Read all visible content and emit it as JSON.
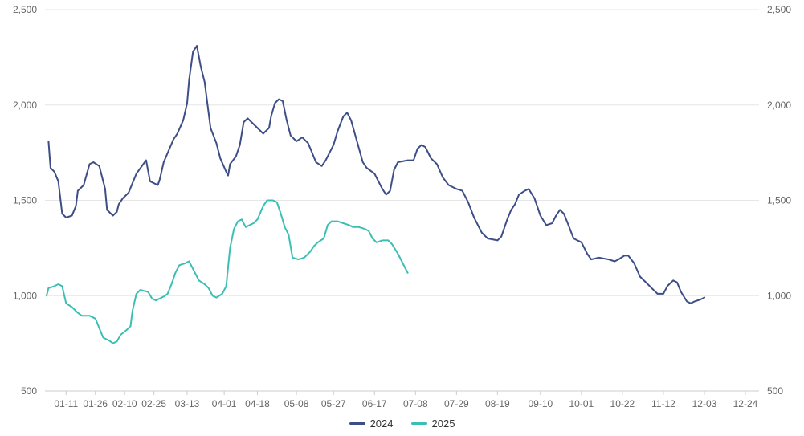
{
  "chart_data": {
    "type": "line",
    "title": "",
    "xlabel": "",
    "ylabel": "",
    "ylim": [
      500,
      2500
    ],
    "y_ticks": [
      "2,500",
      "2,000",
      "1,500",
      "1,000",
      "500"
    ],
    "grid": true,
    "legend_position": "bottom",
    "x_ticks": [
      "01-11",
      "01-26",
      "02-10",
      "02-25",
      "03-13",
      "04-01",
      "04-18",
      "05-08",
      "05-27",
      "06-17",
      "07-08",
      "07-29",
      "08-19",
      "09-10",
      "10-01",
      "10-22",
      "11-12",
      "12-03",
      "12-24"
    ],
    "series": [
      {
        "name": "2024",
        "color": "#3d4e87",
        "points": [
          [
            "01-02",
            1810
          ],
          [
            "01-03",
            1670
          ],
          [
            "01-05",
            1650
          ],
          [
            "01-07",
            1600
          ],
          [
            "01-09",
            1430
          ],
          [
            "01-11",
            1410
          ],
          [
            "01-14",
            1420
          ],
          [
            "01-16",
            1470
          ],
          [
            "01-17",
            1550
          ],
          [
            "01-20",
            1580
          ],
          [
            "01-23",
            1690
          ],
          [
            "01-25",
            1700
          ],
          [
            "01-28",
            1680
          ],
          [
            "01-31",
            1560
          ],
          [
            "02-01",
            1450
          ],
          [
            "02-04",
            1420
          ],
          [
            "02-06",
            1440
          ],
          [
            "02-07",
            1480
          ],
          [
            "02-09",
            1510
          ],
          [
            "02-12",
            1540
          ],
          [
            "02-16",
            1640
          ],
          [
            "02-21",
            1710
          ],
          [
            "02-23",
            1600
          ],
          [
            "02-27",
            1580
          ],
          [
            "02-28",
            1610
          ],
          [
            "03-01",
            1700
          ],
          [
            "03-06",
            1820
          ],
          [
            "03-08",
            1850
          ],
          [
            "03-11",
            1920
          ],
          [
            "03-13",
            2010
          ],
          [
            "03-14",
            2130
          ],
          [
            "03-16",
            2280
          ],
          [
            "03-18",
            2310
          ],
          [
            "03-20",
            2200
          ],
          [
            "03-22",
            2120
          ],
          [
            "03-25",
            1880
          ],
          [
            "03-28",
            1800
          ],
          [
            "03-30",
            1720
          ],
          [
            "04-02",
            1650
          ],
          [
            "04-03",
            1630
          ],
          [
            "04-04",
            1690
          ],
          [
            "04-07",
            1730
          ],
          [
            "04-09",
            1790
          ],
          [
            "04-11",
            1910
          ],
          [
            "04-13",
            1930
          ],
          [
            "04-17",
            1890
          ],
          [
            "04-21",
            1850
          ],
          [
            "04-24",
            1880
          ],
          [
            "04-25",
            1940
          ],
          [
            "04-27",
            2010
          ],
          [
            "04-29",
            2030
          ],
          [
            "05-01",
            2020
          ],
          [
            "05-03",
            1920
          ],
          [
            "05-05",
            1840
          ],
          [
            "05-08",
            1810
          ],
          [
            "05-11",
            1830
          ],
          [
            "05-14",
            1800
          ],
          [
            "05-18",
            1700
          ],
          [
            "05-21",
            1680
          ],
          [
            "05-23",
            1710
          ],
          [
            "05-27",
            1790
          ],
          [
            "05-29",
            1860
          ],
          [
            "06-01",
            1940
          ],
          [
            "06-03",
            1960
          ],
          [
            "06-05",
            1920
          ],
          [
            "06-08",
            1810
          ],
          [
            "06-11",
            1700
          ],
          [
            "06-13",
            1670
          ],
          [
            "06-17",
            1640
          ],
          [
            "06-21",
            1560
          ],
          [
            "06-23",
            1530
          ],
          [
            "06-25",
            1550
          ],
          [
            "06-27",
            1660
          ],
          [
            "06-29",
            1700
          ],
          [
            "07-04",
            1710
          ],
          [
            "07-07",
            1710
          ],
          [
            "07-09",
            1770
          ],
          [
            "07-11",
            1790
          ],
          [
            "07-13",
            1780
          ],
          [
            "07-16",
            1720
          ],
          [
            "07-19",
            1690
          ],
          [
            "07-22",
            1620
          ],
          [
            "07-25",
            1580
          ],
          [
            "07-29",
            1560
          ],
          [
            "08-01",
            1550
          ],
          [
            "08-04",
            1490
          ],
          [
            "08-07",
            1410
          ],
          [
            "08-11",
            1330
          ],
          [
            "08-14",
            1300
          ],
          [
            "08-19",
            1290
          ],
          [
            "08-21",
            1310
          ],
          [
            "08-24",
            1400
          ],
          [
            "08-26",
            1450
          ],
          [
            "08-28",
            1480
          ],
          [
            "08-30",
            1530
          ],
          [
            "09-02",
            1550
          ],
          [
            "09-04",
            1560
          ],
          [
            "09-07",
            1510
          ],
          [
            "09-10",
            1420
          ],
          [
            "09-13",
            1370
          ],
          [
            "09-16",
            1380
          ],
          [
            "09-18",
            1420
          ],
          [
            "09-20",
            1450
          ],
          [
            "09-22",
            1430
          ],
          [
            "09-24",
            1380
          ],
          [
            "09-27",
            1300
          ],
          [
            "10-01",
            1280
          ],
          [
            "10-04",
            1220
          ],
          [
            "10-06",
            1190
          ],
          [
            "10-10",
            1200
          ],
          [
            "10-15",
            1190
          ],
          [
            "10-18",
            1180
          ],
          [
            "10-20",
            1190
          ],
          [
            "10-23",
            1210
          ],
          [
            "10-25",
            1210
          ],
          [
            "10-28",
            1170
          ],
          [
            "10-31",
            1100
          ],
          [
            "11-03",
            1070
          ],
          [
            "11-06",
            1040
          ],
          [
            "11-09",
            1010
          ],
          [
            "11-12",
            1010
          ],
          [
            "11-14",
            1050
          ],
          [
            "11-17",
            1080
          ],
          [
            "11-19",
            1070
          ],
          [
            "11-21",
            1020
          ],
          [
            "11-24",
            970
          ],
          [
            "11-26",
            960
          ],
          [
            "11-28",
            970
          ],
          [
            "12-01",
            980
          ],
          [
            "12-03",
            990
          ]
        ]
      },
      {
        "name": "2025",
        "color": "#3bbfb4",
        "points": [
          [
            "01-01",
            1000
          ],
          [
            "01-02",
            1040
          ],
          [
            "01-05",
            1050
          ],
          [
            "01-07",
            1060
          ],
          [
            "01-09",
            1050
          ],
          [
            "01-11",
            960
          ],
          [
            "01-14",
            940
          ],
          [
            "01-17",
            910
          ],
          [
            "01-19",
            895
          ],
          [
            "01-23",
            895
          ],
          [
            "01-26",
            880
          ],
          [
            "01-28",
            830
          ],
          [
            "01-30",
            780
          ],
          [
            "02-02",
            765
          ],
          [
            "02-04",
            750
          ],
          [
            "02-06",
            760
          ],
          [
            "02-08",
            795
          ],
          [
            "02-11",
            820
          ],
          [
            "02-13",
            840
          ],
          [
            "02-14",
            920
          ],
          [
            "02-16",
            1010
          ],
          [
            "02-18",
            1030
          ],
          [
            "02-22",
            1020
          ],
          [
            "02-24",
            985
          ],
          [
            "02-26",
            975
          ],
          [
            "03-01",
            995
          ],
          [
            "03-03",
            1010
          ],
          [
            "03-05",
            1060
          ],
          [
            "03-07",
            1120
          ],
          [
            "03-09",
            1160
          ],
          [
            "03-12",
            1170
          ],
          [
            "03-14",
            1180
          ],
          [
            "03-16",
            1140
          ],
          [
            "03-19",
            1080
          ],
          [
            "03-22",
            1060
          ],
          [
            "03-24",
            1040
          ],
          [
            "03-26",
            1000
          ],
          [
            "03-28",
            990
          ],
          [
            "03-31",
            1010
          ],
          [
            "04-02",
            1050
          ],
          [
            "04-04",
            1250
          ],
          [
            "04-06",
            1350
          ],
          [
            "04-08",
            1390
          ],
          [
            "04-10",
            1400
          ],
          [
            "04-12",
            1360
          ],
          [
            "04-14",
            1370
          ],
          [
            "04-16",
            1380
          ],
          [
            "04-18",
            1400
          ],
          [
            "04-21",
            1470
          ],
          [
            "04-23",
            1500
          ],
          [
            "04-26",
            1500
          ],
          [
            "04-28",
            1490
          ],
          [
            "04-30",
            1430
          ],
          [
            "05-02",
            1360
          ],
          [
            "05-04",
            1320
          ],
          [
            "05-06",
            1200
          ],
          [
            "05-09",
            1190
          ],
          [
            "05-12",
            1200
          ],
          [
            "05-15",
            1230
          ],
          [
            "05-17",
            1260
          ],
          [
            "05-19",
            1280
          ],
          [
            "05-22",
            1300
          ],
          [
            "05-24",
            1370
          ],
          [
            "05-26",
            1390
          ],
          [
            "05-29",
            1390
          ],
          [
            "06-01",
            1380
          ],
          [
            "06-04",
            1370
          ],
          [
            "06-06",
            1360
          ],
          [
            "06-09",
            1360
          ],
          [
            "06-12",
            1350
          ],
          [
            "06-14",
            1340
          ],
          [
            "06-16",
            1300
          ],
          [
            "06-18",
            1280
          ],
          [
            "06-21",
            1290
          ],
          [
            "06-24",
            1290
          ],
          [
            "06-26",
            1270
          ],
          [
            "06-29",
            1220
          ],
          [
            "07-01",
            1180
          ],
          [
            "07-03",
            1140
          ],
          [
            "07-04",
            1120
          ]
        ]
      }
    ]
  }
}
